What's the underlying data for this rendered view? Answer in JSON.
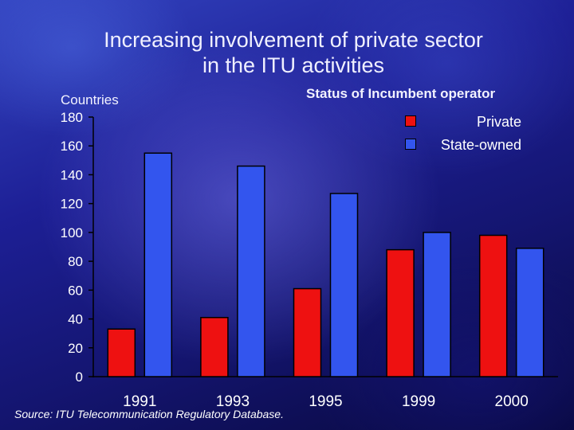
{
  "chart_data": {
    "type": "bar",
    "title": "Increasing involvement of private sector in the ITU activities",
    "title_lines": [
      "Increasing involvement of private sector",
      "in the ITU activities"
    ],
    "ylabel": "Countries",
    "xlabel": "",
    "legend_title": "Status of Incumbent operator",
    "categories": [
      "1991",
      "1993",
      "1995",
      "1999",
      "2000"
    ],
    "series": [
      {
        "name": "Private",
        "color": "#ee1111",
        "values": [
          33,
          41,
          61,
          88,
          98
        ]
      },
      {
        "name": "State-owned",
        "color": "#3355ee",
        "values": [
          155,
          146,
          127,
          100,
          89
        ]
      }
    ],
    "ylim": [
      0,
      180
    ],
    "yticks": [
      0,
      20,
      40,
      60,
      80,
      100,
      120,
      140,
      160,
      180
    ],
    "legend_position": "top-right",
    "source": "Source: ITU Telecommunication Regulatory Database."
  }
}
